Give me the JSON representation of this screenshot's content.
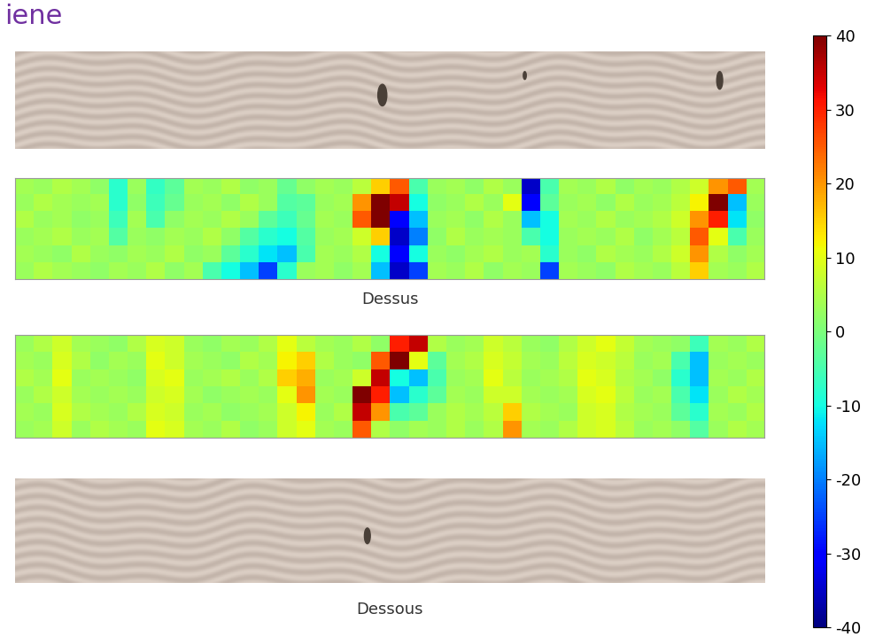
{
  "header": {
    "title": "iene"
  },
  "chart_data": {
    "type": "heatmap",
    "tick_labels": false,
    "panels": [
      {
        "kind": "photo"
      },
      {
        "kind": "heatmap",
        "caption": "Dessus",
        "cells": [
          [
            4,
            3,
            5,
            4,
            2,
            -8,
            3,
            -7,
            -3,
            4,
            3,
            5,
            2,
            3,
            -2,
            2,
            4,
            3,
            6,
            15,
            25,
            -5,
            3,
            4,
            2,
            5,
            3,
            -35,
            -5,
            4,
            3,
            5,
            2,
            4,
            3,
            5,
            8,
            20,
            25,
            4
          ],
          [
            3,
            5,
            4,
            3,
            4,
            -8,
            2,
            -6,
            -2,
            3,
            4,
            2,
            5,
            3,
            -4,
            -3,
            3,
            4,
            20,
            40,
            35,
            -10,
            2,
            3,
            5,
            3,
            10,
            -30,
            -3,
            3,
            4,
            2,
            5,
            3,
            4,
            6,
            12,
            40,
            -15,
            3
          ],
          [
            5,
            3,
            4,
            2,
            3,
            -6,
            4,
            -5,
            2,
            4,
            3,
            5,
            3,
            -3,
            -6,
            -2,
            4,
            3,
            25,
            40,
            -30,
            -15,
            3,
            4,
            2,
            5,
            3,
            -15,
            -10,
            4,
            3,
            5,
            3,
            4,
            5,
            8,
            20,
            30,
            -12,
            2
          ],
          [
            3,
            4,
            5,
            3,
            4,
            -4,
            3,
            2,
            4,
            3,
            5,
            2,
            -4,
            -8,
            -10,
            -4,
            3,
            4,
            8,
            15,
            -35,
            -20,
            2,
            5,
            3,
            4,
            3,
            -5,
            -10,
            3,
            4,
            3,
            5,
            2,
            4,
            6,
            25,
            10,
            -5,
            3
          ],
          [
            4,
            3,
            2,
            5,
            3,
            2,
            4,
            3,
            5,
            2,
            3,
            -3,
            -8,
            -12,
            -15,
            -5,
            4,
            3,
            5,
            -10,
            -30,
            -10,
            3,
            2,
            4,
            5,
            3,
            4,
            -8,
            3,
            2,
            5,
            4,
            3,
            5,
            8,
            20,
            5,
            2,
            4
          ],
          [
            3,
            5,
            4,
            3,
            2,
            4,
            3,
            5,
            2,
            4,
            -5,
            -10,
            -15,
            -25,
            -8,
            3,
            4,
            2,
            4,
            -15,
            -35,
            -25,
            4,
            3,
            5,
            2,
            4,
            3,
            -25,
            4,
            3,
            2,
            5,
            4,
            3,
            6,
            15,
            4,
            3,
            5
          ]
        ]
      },
      {
        "kind": "heatmap",
        "cells": [
          [
            3,
            5,
            8,
            4,
            3,
            2,
            5,
            9,
            8,
            3,
            2,
            4,
            3,
            5,
            10,
            6,
            4,
            3,
            5,
            2,
            30,
            35,
            5,
            3,
            4,
            8,
            6,
            3,
            2,
            5,
            8,
            10,
            7,
            4,
            3,
            2,
            -6,
            4,
            3,
            5
          ],
          [
            4,
            3,
            9,
            5,
            2,
            4,
            3,
            10,
            8,
            4,
            3,
            2,
            5,
            4,
            12,
            15,
            5,
            3,
            2,
            25,
            40,
            10,
            -3,
            4,
            5,
            9,
            7,
            4,
            3,
            6,
            9,
            8,
            6,
            3,
            4,
            -5,
            -15,
            3,
            4,
            3
          ],
          [
            5,
            4,
            10,
            3,
            4,
            3,
            2,
            9,
            10,
            3,
            4,
            5,
            3,
            5,
            15,
            18,
            3,
            4,
            8,
            35,
            -10,
            -15,
            -5,
            3,
            4,
            10,
            6,
            3,
            4,
            5,
            10,
            9,
            5,
            4,
            2,
            -8,
            -15,
            4,
            3,
            5
          ],
          [
            3,
            5,
            8,
            4,
            3,
            4,
            3,
            8,
            9,
            4,
            2,
            3,
            4,
            3,
            10,
            20,
            4,
            3,
            40,
            30,
            -15,
            -8,
            -3,
            4,
            3,
            8,
            8,
            4,
            3,
            4,
            9,
            10,
            6,
            3,
            4,
            -5,
            -12,
            3,
            5,
            4
          ],
          [
            4,
            3,
            9,
            5,
            4,
            3,
            5,
            9,
            8,
            3,
            4,
            2,
            3,
            4,
            8,
            12,
            3,
            5,
            35,
            20,
            -5,
            -3,
            3,
            5,
            4,
            6,
            15,
            5,
            4,
            3,
            8,
            9,
            5,
            4,
            3,
            -3,
            -8,
            4,
            3,
            5
          ],
          [
            3,
            4,
            8,
            3,
            5,
            4,
            3,
            10,
            9,
            4,
            3,
            5,
            2,
            3,
            8,
            10,
            4,
            3,
            25,
            5,
            2,
            4,
            3,
            5,
            3,
            5,
            20,
            4,
            3,
            5,
            8,
            9,
            6,
            3,
            4,
            2,
            -4,
            3,
            5,
            4
          ]
        ]
      },
      {
        "kind": "photo",
        "caption": "Dessous"
      }
    ],
    "colorbar": {
      "range": [
        -40,
        40
      ],
      "ticks": [
        -40,
        -30,
        -20,
        -10,
        0,
        10,
        20,
        30,
        40
      ]
    }
  }
}
